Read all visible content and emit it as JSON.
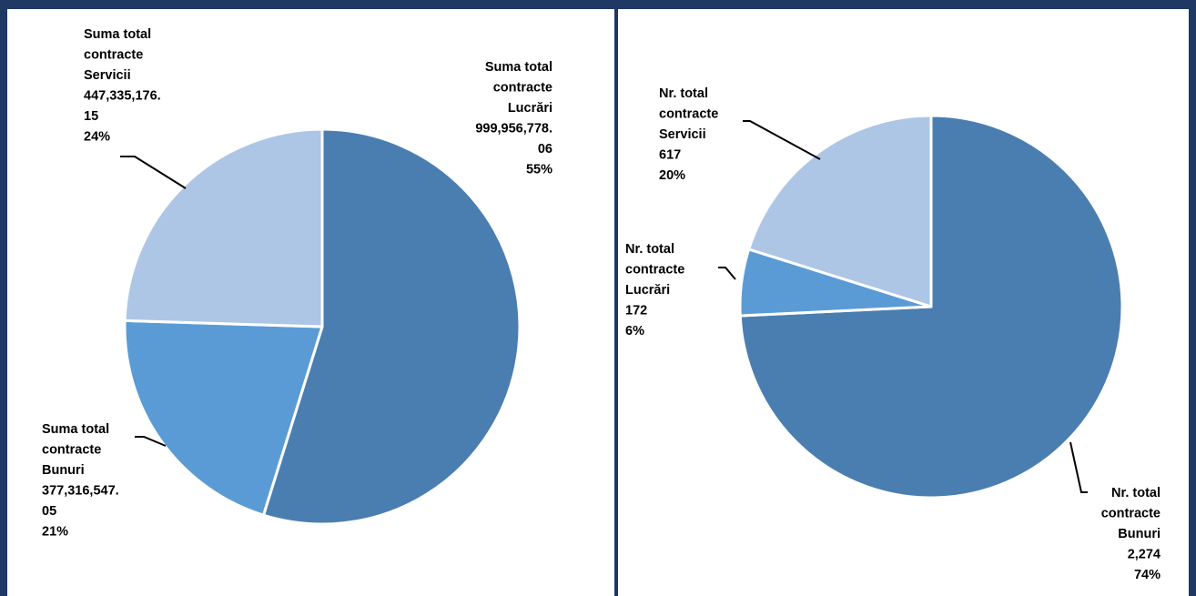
{
  "colors": {
    "frame": "#1f3864",
    "slice_dark": "#4a7eb0",
    "slice_mid": "#5b9bd5",
    "slice_light": "#adc6e5"
  },
  "chart_data": [
    {
      "type": "pie",
      "title": "",
      "slices": [
        {
          "category": "Lucrări",
          "value": 999956778.06,
          "percent": 55,
          "color": "#4a7eb0",
          "label_lines": [
            "Suma total",
            "contracte",
            "Lucrări",
            "999,956,778.",
            "06",
            "55%"
          ]
        },
        {
          "category": "Bunuri",
          "value": 377316547.05,
          "percent": 21,
          "color": "#5b9bd5",
          "label_lines": [
            "Suma total",
            "contracte",
            "Bunuri",
            "377,316,547.",
            "05",
            "21%"
          ]
        },
        {
          "category": "Servicii",
          "value": 447335176.15,
          "percent": 24,
          "color": "#adc6e5",
          "label_lines": [
            "Suma total",
            "contracte",
            "Servicii",
            "447,335,176.",
            "15",
            "24%"
          ]
        }
      ]
    },
    {
      "type": "pie",
      "title": "",
      "slices": [
        {
          "category": "Bunuri",
          "value": 2274,
          "percent": 74,
          "color": "#4a7eb0",
          "label_lines": [
            "Nr. total",
            "contracte",
            "Bunuri",
            "2,274",
            "74%"
          ]
        },
        {
          "category": "Lucrări",
          "value": 172,
          "percent": 6,
          "color": "#5b9bd5",
          "label_lines": [
            "Nr. total",
            "contracte",
            "Lucrări",
            "172",
            "6%"
          ]
        },
        {
          "category": "Servicii",
          "value": 617,
          "percent": 20,
          "color": "#adc6e5",
          "label_lines": [
            "Nr. total",
            "contracte",
            "Servicii",
            "617",
            "20%"
          ]
        }
      ]
    }
  ]
}
